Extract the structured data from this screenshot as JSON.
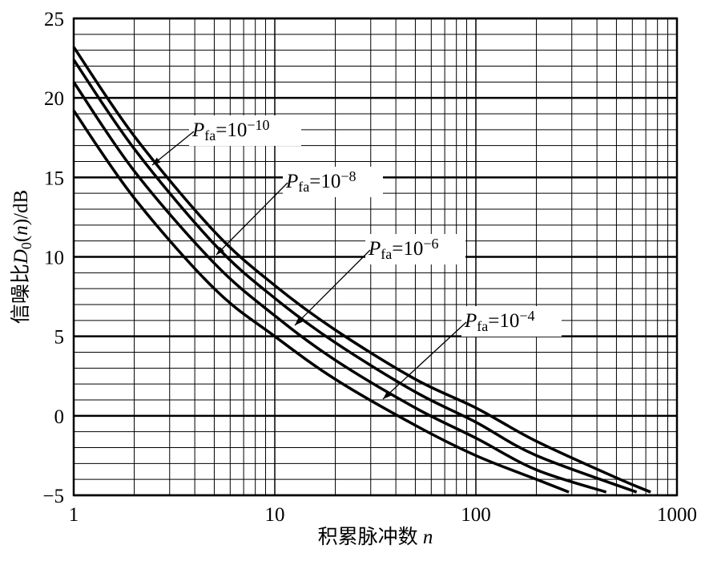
{
  "chart_data": {
    "type": "line",
    "x_label": [
      {
        "text": "积累脉冲数 "
      },
      {
        "text": "n",
        "style": "italic"
      }
    ],
    "y_label": [
      {
        "text": "信噪比"
      },
      {
        "text": "D",
        "style": "italic"
      },
      {
        "text": "0",
        "style": "sub"
      },
      {
        "text": "("
      },
      {
        "text": "n",
        "style": "italic"
      },
      {
        "text": ")/dB"
      }
    ],
    "xscale": "log",
    "xlim": [
      1,
      1000
    ],
    "xticks": [
      1,
      10,
      100,
      1000
    ],
    "xminor": [
      2,
      3,
      4,
      5,
      6,
      7,
      8,
      9,
      20,
      30,
      40,
      50,
      60,
      70,
      80,
      90,
      200,
      300,
      400,
      500,
      600,
      700,
      800,
      900
    ],
    "ylim": [
      -5,
      25
    ],
    "yticks": [
      {
        "value": -5,
        "label": "−5"
      },
      0,
      5,
      10,
      15,
      20,
      25
    ],
    "yminor": [
      -4,
      -3,
      -2,
      -1,
      1,
      2,
      3,
      4,
      6,
      7,
      8,
      9,
      11,
      12,
      13,
      14,
      16,
      17,
      18,
      19,
      21,
      22,
      23,
      24
    ],
    "grid": true,
    "color": "#000000",
    "series": [
      {
        "label": [
          {
            "text": "P",
            "style": "italic"
          },
          {
            "text": "fa",
            "style": "sub"
          },
          {
            "text": "=10"
          },
          {
            "text": "−10",
            "style": "sup"
          }
        ],
        "x": [
          1,
          2,
          5,
          10,
          20,
          50,
          100,
          200,
          500,
          740
        ],
        "values": [
          23.2,
          17.6,
          11.6,
          8.2,
          5.4,
          2.3,
          0.5,
          -1.6,
          -3.9,
          -4.8
        ]
      },
      {
        "label": [
          {
            "text": "P",
            "style": "italic"
          },
          {
            "text": "fa",
            "style": "sub"
          },
          {
            "text": "=10"
          },
          {
            "text": "−8",
            "style": "sup"
          }
        ],
        "x": [
          1,
          2,
          5,
          10,
          20,
          50,
          100,
          200,
          630
        ],
        "values": [
          22.4,
          16.8,
          10.8,
          7.4,
          4.6,
          1.5,
          -0.4,
          -2.5,
          -4.8
        ]
      },
      {
        "label": [
          {
            "text": "P",
            "style": "italic"
          },
          {
            "text": "fa",
            "style": "sub"
          },
          {
            "text": "=10"
          },
          {
            "text": "−6",
            "style": "sup"
          }
        ],
        "x": [
          1,
          2,
          5,
          10,
          20,
          50,
          100,
          200,
          445
        ],
        "values": [
          21.0,
          15.4,
          9.6,
          6.3,
          3.5,
          0.5,
          -1.4,
          -3.4,
          -4.8
        ]
      },
      {
        "label": [
          {
            "text": "P",
            "style": "italic"
          },
          {
            "text": "fa",
            "style": "sub"
          },
          {
            "text": "=10"
          },
          {
            "text": "−4",
            "style": "sup"
          }
        ],
        "x": [
          1,
          2,
          5,
          10,
          20,
          50,
          100,
          200,
          290
        ],
        "values": [
          19.2,
          13.7,
          8.0,
          5.0,
          2.3,
          -0.6,
          -2.5,
          -4.0,
          -4.8
        ]
      }
    ]
  }
}
